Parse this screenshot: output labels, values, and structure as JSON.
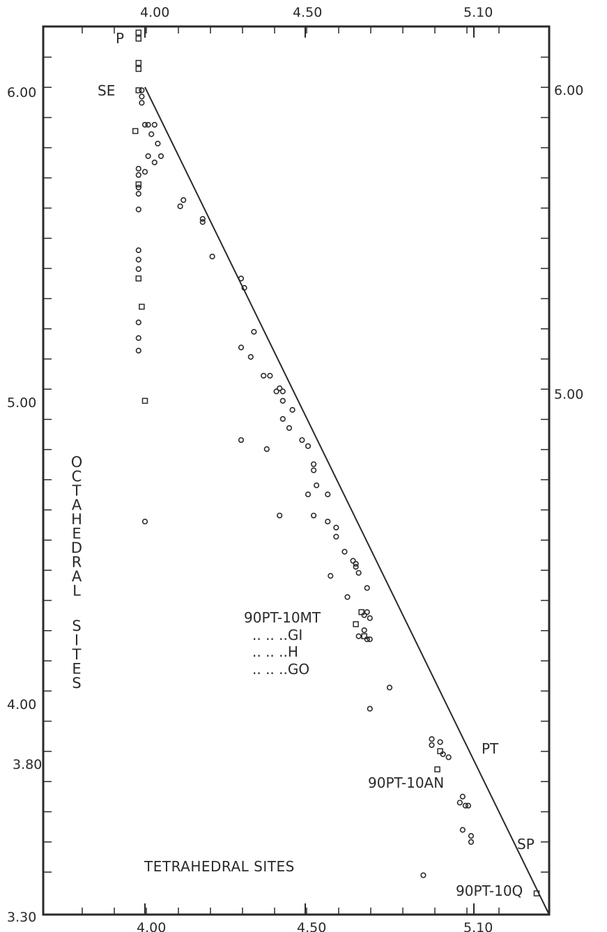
{
  "chart_data": {
    "type": "scatter",
    "xlabel": "TETRAHEDRAL SITES",
    "ylabel": "OCTAHEDRAL SITES",
    "x_ticks_bottom": [
      "4.00",
      "4.50",
      "5.10"
    ],
    "x_ticks_top": [
      "4.00",
      "4.50",
      "5.10"
    ],
    "y_ticks_left": [
      "6.00",
      "5.00",
      "4.00",
      "3.80",
      "3.30"
    ],
    "y_ticks_right": [
      "6.00",
      "5.00"
    ],
    "legend": [
      "90PT-10MT",
      ".. .. ..GI",
      ".. .. ..H",
      ".. .. ..GO"
    ],
    "annotations": [
      "P",
      "SE",
      "PT",
      "90PT-10AN",
      "SP",
      "90PT-10Q"
    ],
    "reference_line": {
      "from": [
        4.0,
        6.0
      ],
      "to": [
        5.22,
        3.3
      ]
    },
    "series": [
      {
        "marker": "circle",
        "points": [
          [
            3.99,
            5.99
          ],
          [
            3.99,
            5.97
          ],
          [
            3.99,
            5.95
          ],
          [
            4.01,
            5.88
          ],
          [
            4.03,
            5.88
          ],
          [
            4.02,
            5.85
          ],
          [
            4.04,
            5.82
          ],
          [
            4.05,
            5.78
          ],
          [
            4.01,
            5.78
          ],
          [
            4.03,
            5.76
          ],
          [
            4.0,
            5.73
          ],
          [
            3.98,
            5.74
          ],
          [
            3.98,
            5.72
          ],
          [
            3.98,
            5.68
          ],
          [
            3.98,
            5.66
          ],
          [
            3.98,
            5.61
          ],
          [
            4.12,
            5.64
          ],
          [
            4.11,
            5.62
          ],
          [
            4.18,
            5.58
          ],
          [
            4.18,
            5.57
          ],
          [
            4.21,
            5.46
          ],
          [
            3.98,
            5.48
          ],
          [
            3.98,
            5.45
          ],
          [
            3.98,
            5.42
          ],
          [
            4.3,
            5.39
          ],
          [
            4.31,
            5.36
          ],
          [
            4.34,
            5.22
          ],
          [
            3.98,
            5.25
          ],
          [
            3.98,
            5.2
          ],
          [
            3.98,
            5.16
          ],
          [
            4.3,
            5.17
          ],
          [
            4.33,
            5.14
          ],
          [
            4.39,
            5.08
          ],
          [
            4.37,
            5.08
          ],
          [
            4.42,
            5.04
          ],
          [
            4.43,
            5.03
          ],
          [
            4.41,
            5.03
          ],
          [
            4.43,
            5.0
          ],
          [
            4.46,
            4.97
          ],
          [
            4.43,
            4.94
          ],
          [
            4.45,
            4.91
          ],
          [
            4.49,
            4.87
          ],
          [
            4.51,
            4.85
          ],
          [
            4.53,
            4.79
          ],
          [
            4.53,
            4.77
          ],
          [
            4.54,
            4.72
          ],
          [
            4.58,
            4.69
          ],
          [
            4.51,
            4.69
          ],
          [
            4.53,
            4.62
          ],
          [
            4.58,
            4.6
          ],
          [
            4.61,
            4.58
          ],
          [
            4.61,
            4.55
          ],
          [
            4.64,
            4.5
          ],
          [
            4.67,
            4.47
          ],
          [
            4.68,
            4.46
          ],
          [
            4.68,
            4.45
          ],
          [
            4.69,
            4.43
          ],
          [
            4.72,
            4.38
          ],
          [
            4.65,
            4.35
          ],
          [
            4.59,
            4.42
          ],
          [
            4.72,
            4.3
          ],
          [
            4.71,
            4.29
          ],
          [
            4.73,
            4.28
          ],
          [
            4.71,
            4.24
          ],
          [
            4.72,
            4.21
          ],
          [
            4.73,
            4.21
          ],
          [
            4.69,
            4.22
          ],
          [
            4.8,
            4.05
          ],
          [
            4.73,
            3.98
          ],
          [
            4.95,
            3.88
          ],
          [
            4.95,
            3.86
          ],
          [
            4.98,
            3.87
          ],
          [
            4.99,
            3.83
          ],
          [
            5.01,
            3.82
          ],
          [
            5.06,
            3.69
          ],
          [
            5.05,
            3.67
          ],
          [
            5.07,
            3.66
          ],
          [
            5.08,
            3.66
          ],
          [
            5.06,
            3.58
          ],
          [
            5.09,
            3.56
          ],
          [
            5.09,
            3.54
          ],
          [
            4.92,
            3.43
          ],
          [
            4.0,
            4.6
          ],
          [
            4.42,
            4.62
          ],
          [
            4.3,
            4.87
          ],
          [
            4.38,
            4.84
          ],
          [
            4.0,
            5.88
          ]
        ]
      },
      {
        "marker": "square",
        "points": [
          [
            3.98,
            6.18
          ],
          [
            3.98,
            6.16
          ],
          [
            3.98,
            6.08
          ],
          [
            3.98,
            6.06
          ],
          [
            3.98,
            5.99
          ],
          [
            3.97,
            5.86
          ],
          [
            3.98,
            5.69
          ],
          [
            3.98,
            5.39
          ],
          [
            3.99,
            5.3
          ],
          [
            4.0,
            5.0
          ],
          [
            4.7,
            4.3
          ],
          [
            4.68,
            4.26
          ],
          [
            4.71,
            4.22
          ],
          [
            4.98,
            3.84
          ],
          [
            4.97,
            3.78
          ],
          [
            5.2,
            3.37
          ]
        ]
      }
    ]
  }
}
